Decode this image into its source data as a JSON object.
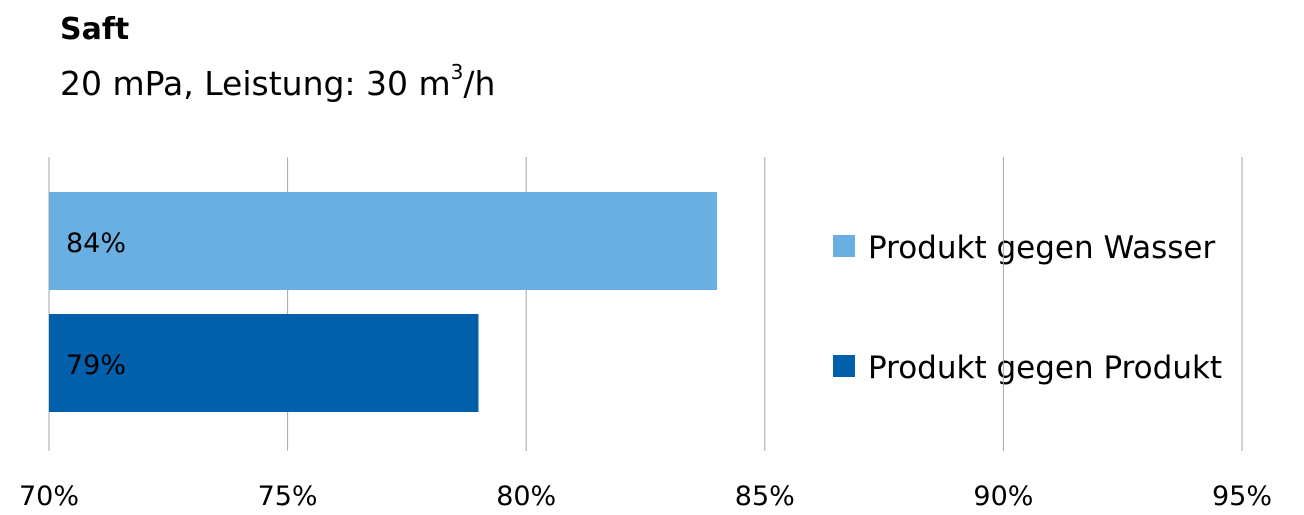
{
  "chart_data": {
    "type": "bar",
    "orientation": "horizontal",
    "title": "Saft",
    "subtitle": {
      "prefix": "20 mPa, Leistung: 30 m",
      "superscript": "3",
      "suffix": "/h"
    },
    "xlim": [
      0.7,
      0.95
    ],
    "x_ticks": [
      0.7,
      0.75,
      0.8,
      0.85,
      0.9,
      0.95
    ],
    "x_tick_labels": [
      "70%",
      "75%",
      "80%",
      "85%",
      "90%",
      "95%"
    ],
    "grid": true,
    "legend_position": "right",
    "series": [
      {
        "name": "Produkt gegen Wasser",
        "value": 0.84,
        "label": "84%",
        "color": "#6aafe1"
      },
      {
        "name": "Produkt gegen Produkt",
        "value": 0.79,
        "label": "79%",
        "color": "#0060ac"
      }
    ]
  }
}
